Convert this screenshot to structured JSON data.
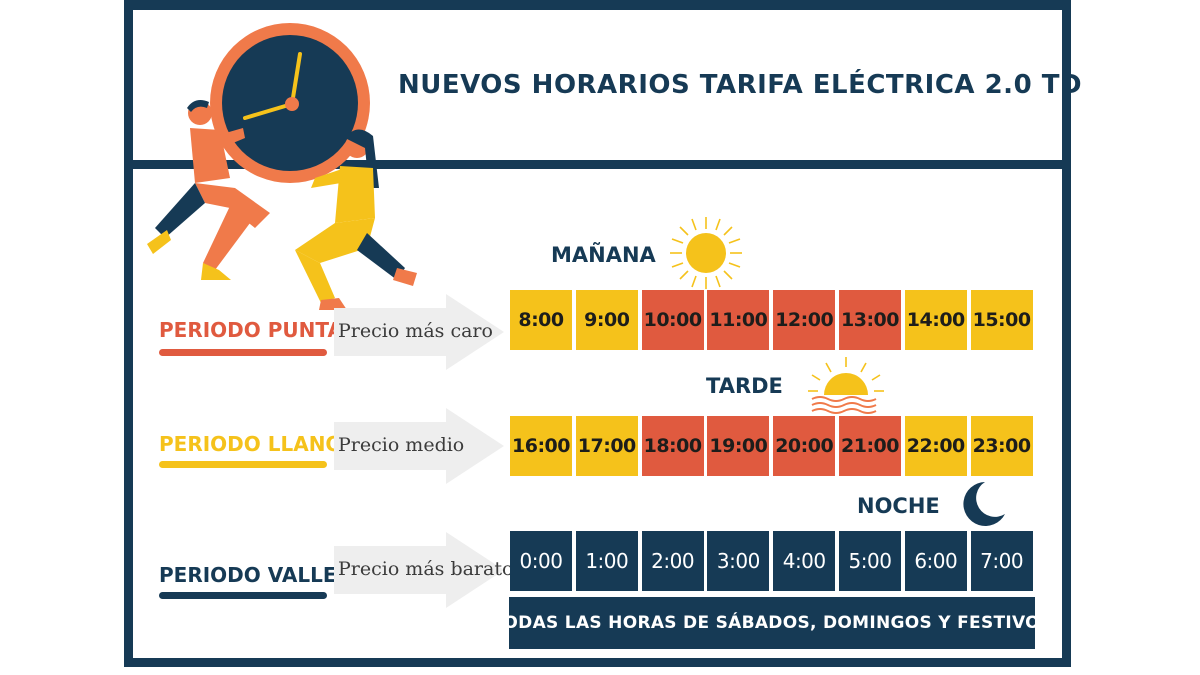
{
  "title": "NUEVOS HORARIOS TARIFA ELÉCTRICA 2.0 TD",
  "colors": {
    "navy": "#163a55",
    "punta_red": "#e05a3f",
    "llano_yellow": "#f5c21b",
    "clock_orange": "#f07a4a",
    "arrow_gray": "#eeeeee"
  },
  "sections": {
    "manana": "MAÑANA",
    "tarde": "TARDE",
    "noche": "NOCHE"
  },
  "periods": {
    "punta": {
      "label": "PERIODO PUNTA",
      "price": "Precio más caro",
      "color": "#e05a3f"
    },
    "llano": {
      "label": "PERIODO LLANO",
      "price": "Precio medio",
      "color": "#f5c21b"
    },
    "valle": {
      "label": "PERIODO VALLE",
      "price": "Precio más barato",
      "color": "#163a55"
    }
  },
  "rows": {
    "manana": [
      {
        "time": "8:00",
        "period": "llano"
      },
      {
        "time": "9:00",
        "period": "llano"
      },
      {
        "time": "10:00",
        "period": "punta"
      },
      {
        "time": "11:00",
        "period": "punta"
      },
      {
        "time": "12:00",
        "period": "punta"
      },
      {
        "time": "13:00",
        "period": "punta"
      },
      {
        "time": "14:00",
        "period": "llano"
      },
      {
        "time": "15:00",
        "period": "llano"
      }
    ],
    "tarde": [
      {
        "time": "16:00",
        "period": "llano"
      },
      {
        "time": "17:00",
        "period": "llano"
      },
      {
        "time": "18:00",
        "period": "punta"
      },
      {
        "time": "19:00",
        "period": "punta"
      },
      {
        "time": "20:00",
        "period": "punta"
      },
      {
        "time": "21:00",
        "period": "punta"
      },
      {
        "time": "22:00",
        "period": "llano"
      },
      {
        "time": "23:00",
        "period": "llano"
      }
    ],
    "noche": [
      {
        "time": "0:00",
        "period": "valle"
      },
      {
        "time": "1:00",
        "period": "valle"
      },
      {
        "time": "2:00",
        "period": "valle"
      },
      {
        "time": "3:00",
        "period": "valle"
      },
      {
        "time": "4:00",
        "period": "valle"
      },
      {
        "time": "5:00",
        "period": "valle"
      },
      {
        "time": "6:00",
        "period": "valle"
      },
      {
        "time": "7:00",
        "period": "valle"
      }
    ]
  },
  "weekend_note": "TODAS LAS HORAS DE SÁBADOS, DOMINGOS Y FESTIVOS",
  "icons": {
    "illustration": "people-holding-clock-icon",
    "morning": "sun-icon",
    "afternoon": "sunset-icon",
    "night": "moon-icon"
  }
}
